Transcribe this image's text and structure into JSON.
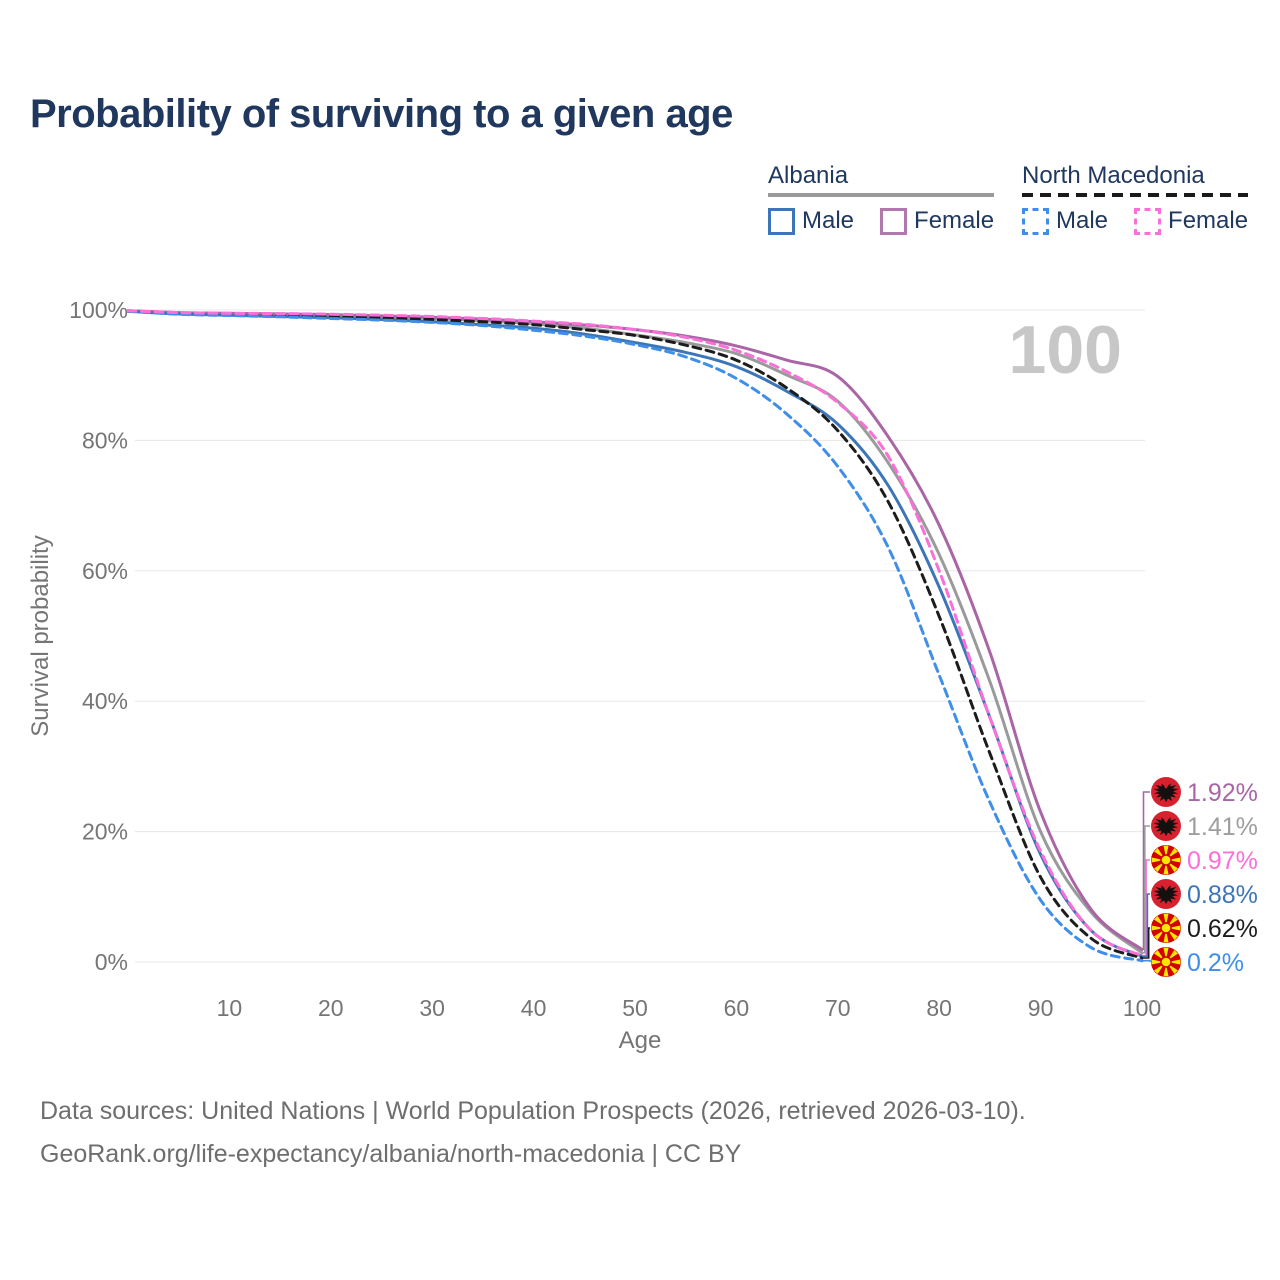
{
  "title": "Probability of surviving to a given age",
  "watermark": "100",
  "legend": {
    "groups": [
      {
        "name": "Albania",
        "line_style": "solid",
        "line_color": "#9a9a9a",
        "items": [
          {
            "label": "Male",
            "color": "#3d76b8",
            "dashed": false
          },
          {
            "label": "Female",
            "color": "#b178ae",
            "dashed": false
          }
        ]
      },
      {
        "name": "North Macedonia",
        "line_style": "dashed",
        "line_color": "#1a1a1a",
        "items": [
          {
            "label": "Male",
            "color": "#3f8ee8",
            "dashed": true
          },
          {
            "label": "Female",
            "color": "#fa6fd8",
            "dashed": true
          }
        ]
      }
    ]
  },
  "chart_data": {
    "type": "line",
    "title": "Probability of surviving to a given age",
    "xlabel": "Age",
    "ylabel": "Survival probability",
    "xlim": [
      0,
      100
    ],
    "ylim": [
      0,
      100
    ],
    "grid": "horizontal",
    "legend_position": "top-right",
    "x_ticks": [
      10,
      20,
      30,
      40,
      50,
      60,
      70,
      80,
      90,
      100
    ],
    "y_ticks": [
      {
        "label": "100%",
        "value": 100
      },
      {
        "label": "80%",
        "value": 80
      },
      {
        "label": "60%",
        "value": 60
      },
      {
        "label": "40%",
        "value": 40
      },
      {
        "label": "20%",
        "value": 20
      },
      {
        "label": "0%",
        "value": 0
      }
    ],
    "ages": [
      0,
      5,
      10,
      15,
      20,
      25,
      30,
      35,
      40,
      45,
      50,
      55,
      60,
      65,
      70,
      75,
      80,
      85,
      90,
      95,
      100
    ],
    "series": [
      {
        "id": "albania-female",
        "country": "Albania",
        "sex": "Female",
        "flag": "al",
        "color": "#a965a5",
        "dashed": false,
        "end_label": "1.92%",
        "end_value": 1.92,
        "values": [
          99.9,
          99.6,
          99.5,
          99.4,
          99.3,
          99.1,
          98.9,
          98.6,
          98.2,
          97.7,
          97.0,
          96.0,
          94.5,
          92.3,
          89.8,
          80.5,
          67.0,
          47.5,
          23.0,
          8.0,
          1.92
        ]
      },
      {
        "id": "albania-both",
        "country": "Albania",
        "sex": "Both",
        "flag": "al",
        "color": "#9a9a9a",
        "dashed": false,
        "end_label": "1.41%",
        "end_value": 1.41,
        "values": [
          99.9,
          99.5,
          99.4,
          99.3,
          99.15,
          98.95,
          98.7,
          98.35,
          97.9,
          97.2,
          96.2,
          95.0,
          93.3,
          90.0,
          86.0,
          76.5,
          62.5,
          43.0,
          20.0,
          7.6,
          1.41
        ]
      },
      {
        "id": "north-macedonia-female",
        "country": "North Macedonia",
        "sex": "Female",
        "flag": "mk",
        "color": "#fa6fd8",
        "dashed": true,
        "end_label": "0.97%",
        "end_value": 0.97,
        "values": [
          99.9,
          99.6,
          99.5,
          99.45,
          99.35,
          99.2,
          99.0,
          98.7,
          98.3,
          97.8,
          97.0,
          95.8,
          93.8,
          90.5,
          85.8,
          77.5,
          60.0,
          37.5,
          17.0,
          4.8,
          0.97
        ]
      },
      {
        "id": "albania-male",
        "country": "Albania",
        "sex": "Male",
        "flag": "al",
        "color": "#3d76b8",
        "dashed": false,
        "end_label": "0.88%",
        "end_value": 0.88,
        "values": [
          99.8,
          99.4,
          99.2,
          99.0,
          98.8,
          98.55,
          98.2,
          97.75,
          97.2,
          96.3,
          95.0,
          93.5,
          91.3,
          87.5,
          82.5,
          73.0,
          57.5,
          37.5,
          16.5,
          4.8,
          0.88
        ]
      },
      {
        "id": "north-macedonia-both",
        "country": "North Macedonia",
        "sex": "Both",
        "flag": "mk",
        "color": "#1c1c1c",
        "dashed": true,
        "end_label": "0.62%",
        "end_value": 0.62,
        "values": [
          99.85,
          99.5,
          99.35,
          99.2,
          99.0,
          98.8,
          98.55,
          98.2,
          97.75,
          97.0,
          96.1,
          94.6,
          92.3,
          88.0,
          81.5,
          70.5,
          53.0,
          32.0,
          13.0,
          3.6,
          0.62
        ]
      },
      {
        "id": "north-macedonia-male",
        "country": "North Macedonia",
        "sex": "Male",
        "flag": "mk",
        "color": "#3f8ee8",
        "dashed": true,
        "end_label": "0.2%",
        "end_value": 0.2,
        "values": [
          99.8,
          99.35,
          99.15,
          98.95,
          98.7,
          98.45,
          98.1,
          97.6,
          96.9,
          96.0,
          94.7,
          92.8,
          89.5,
          84.0,
          76.0,
          63.5,
          44.0,
          24.5,
          9.5,
          2.2,
          0.2
        ]
      }
    ]
  },
  "footer": {
    "line1": "Data sources: United Nations | World Population Prospects (2026, retrieved 2026-03-10).",
    "line2": "GeoRank.org/life-expectancy/albania/north-macedonia | CC BY"
  }
}
